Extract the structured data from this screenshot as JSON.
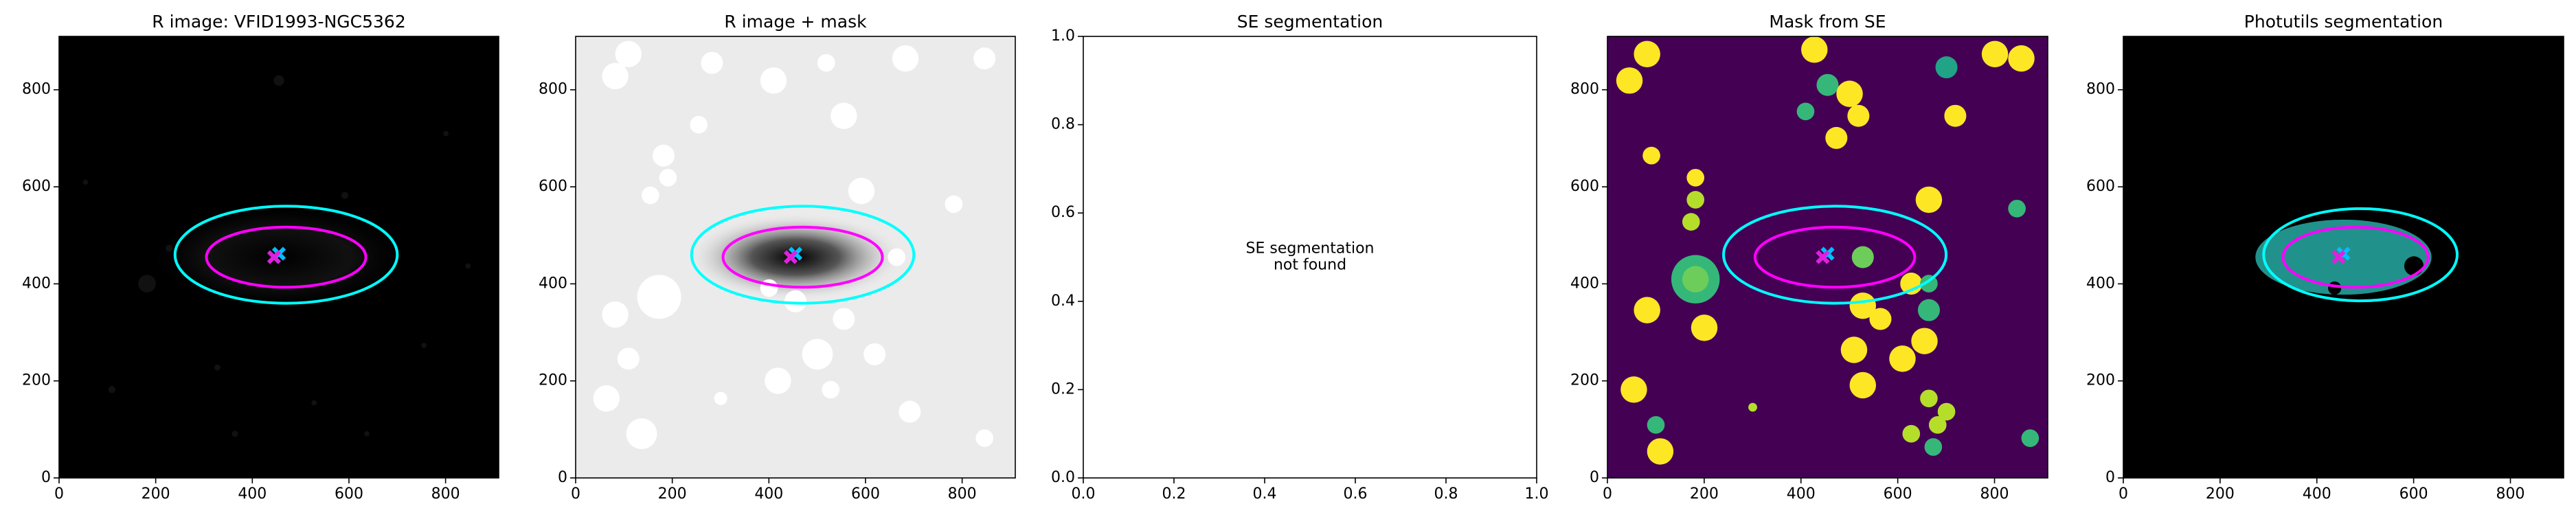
{
  "panels": [
    {
      "title": "R image: VFID1993-NGC5362",
      "background": "noise",
      "xlim": [
        0,
        910
      ],
      "ylim": [
        0,
        910
      ],
      "xticks": [
        0,
        200,
        400,
        600,
        800
      ],
      "yticks": [
        0,
        200,
        400,
        600,
        800
      ],
      "ellipses": [
        {
          "color": "#00ffff",
          "cx": 470,
          "cy": 460,
          "rx": 230,
          "ry": 100
        },
        {
          "color": "#ff00ff",
          "cx": 470,
          "cy": 455,
          "rx": 165,
          "ry": 62
        }
      ],
      "markers": [
        {
          "color": "#00bfff",
          "x": 455,
          "y": 462
        },
        {
          "color": "#e020e0",
          "x": 445,
          "y": 455
        }
      ]
    },
    {
      "title": "R image + mask",
      "background": "mask-gray",
      "xlim": [
        0,
        910
      ],
      "ylim": [
        0,
        910
      ],
      "xticks": [
        0,
        200,
        400,
        600,
        800
      ],
      "yticks": [
        0,
        200,
        400,
        600,
        800
      ],
      "ellipses": [
        {
          "color": "#00ffff",
          "cx": 470,
          "cy": 460,
          "rx": 230,
          "ry": 100
        },
        {
          "color": "#ff00ff",
          "cx": 470,
          "cy": 455,
          "rx": 165,
          "ry": 62
        }
      ],
      "markers": [
        {
          "color": "#00bfff",
          "x": 455,
          "y": 462
        },
        {
          "color": "#e020e0",
          "x": 445,
          "y": 455
        }
      ]
    },
    {
      "title": "SE segmentation",
      "background": "none",
      "xlim": [
        0,
        1
      ],
      "ylim": [
        0,
        1
      ],
      "xticks": [
        {
          "value": 0,
          "label": "0.0"
        },
        {
          "value": 0.2,
          "label": "0.2"
        },
        {
          "value": 0.4,
          "label": "0.4"
        },
        {
          "value": 0.6,
          "label": "0.6"
        },
        {
          "value": 0.8,
          "label": "0.8"
        },
        {
          "value": 1,
          "label": "1.0"
        }
      ],
      "yticks": [
        {
          "value": 0,
          "label": "0.0"
        },
        {
          "value": 0.2,
          "label": "0.2"
        },
        {
          "value": 0.4,
          "label": "0.4"
        },
        {
          "value": 0.6,
          "label": "0.6"
        },
        {
          "value": 0.8,
          "label": "0.8"
        },
        {
          "value": 1,
          "label": "1.0"
        }
      ],
      "annotation": [
        "SE segmentation",
        "not found"
      ]
    },
    {
      "title": "Mask from SE",
      "background": "seg-mask",
      "xlim": [
        0,
        910
      ],
      "ylim": [
        0,
        910
      ],
      "xticks": [
        0,
        200,
        400,
        600,
        800
      ],
      "yticks": [
        0,
        200,
        400,
        600,
        800
      ],
      "ellipses": [
        {
          "color": "#00ffff",
          "cx": 470,
          "cy": 460,
          "rx": 230,
          "ry": 100
        },
        {
          "color": "#ff00ff",
          "cx": 470,
          "cy": 455,
          "rx": 165,
          "ry": 62
        }
      ],
      "markers": [
        {
          "color": "#00bfff",
          "x": 455,
          "y": 462
        },
        {
          "color": "#e020e0",
          "x": 445,
          "y": 455
        }
      ]
    },
    {
      "title": "Photutils segmentation",
      "background": "photutils",
      "xlim": [
        0,
        910
      ],
      "ylim": [
        0,
        910
      ],
      "xticks": [
        0,
        200,
        400,
        600,
        800
      ],
      "yticks": [
        0,
        200,
        400,
        600,
        800
      ],
      "ellipses": [
        {
          "color": "#00ffff",
          "cx": 490,
          "cy": 460,
          "rx": 200,
          "ry": 95
        },
        {
          "color": "#ff00ff",
          "cx": 480,
          "cy": 455,
          "rx": 150,
          "ry": 62
        }
      ],
      "markers": [
        {
          "color": "#00bfff",
          "x": 455,
          "y": 462
        },
        {
          "color": "#e020e0",
          "x": 445,
          "y": 455
        }
      ]
    }
  ]
}
